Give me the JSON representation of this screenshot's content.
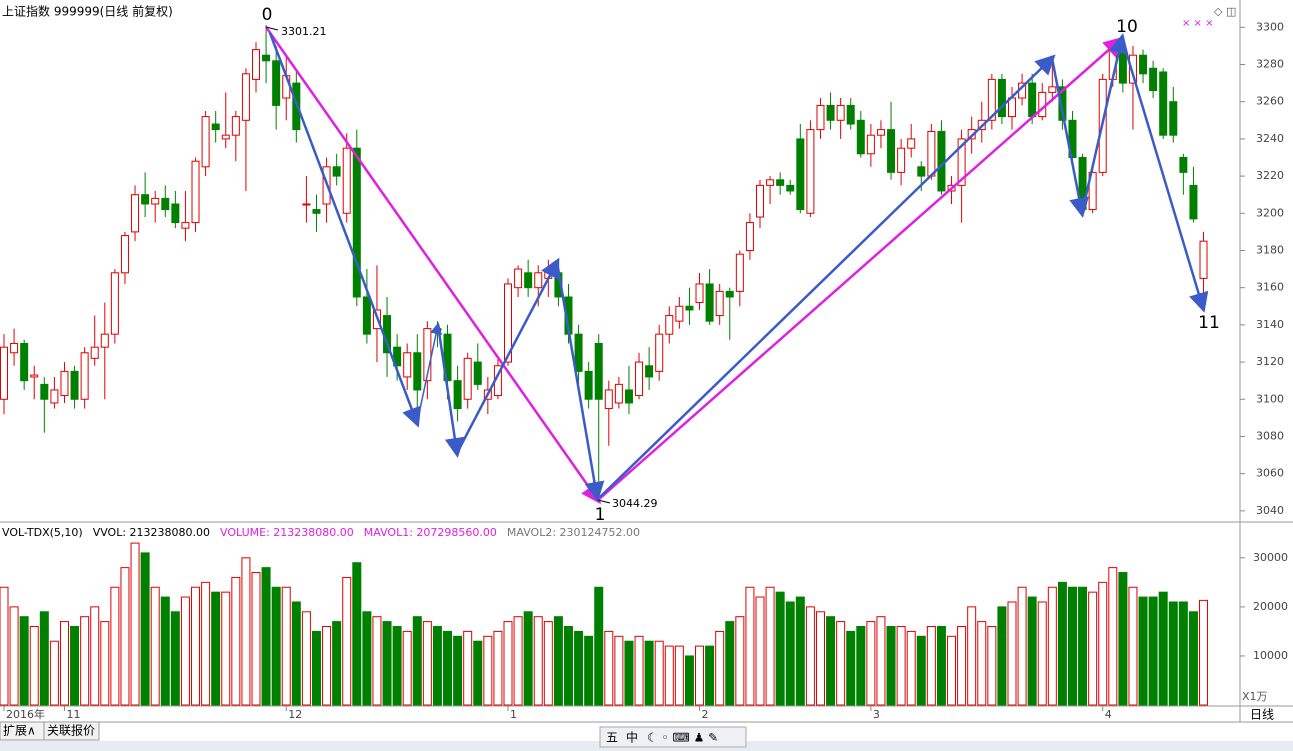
{
  "chart_data": {
    "type": "candlestick",
    "title": "上证指数 999999(日线 前复权)",
    "categories": [
      "2016年",
      null,
      null,
      null,
      null,
      null,
      "11",
      null,
      null,
      null,
      null,
      null,
      null,
      null,
      null,
      null,
      null,
      null,
      null,
      null,
      null,
      null,
      null,
      null,
      null,
      null,
      null,
      null,
      "12",
      null,
      null,
      null,
      null,
      null,
      null,
      null,
      null,
      null,
      null,
      null,
      null,
      null,
      null,
      null,
      null,
      null,
      null,
      null,
      null,
      null,
      "1",
      null,
      null,
      null,
      null,
      null,
      null,
      null,
      null,
      null,
      null,
      null,
      null,
      null,
      null,
      null,
      null,
      null,
      null,
      "2",
      null,
      null,
      null,
      null,
      null,
      null,
      null,
      null,
      null,
      null,
      null,
      null,
      null,
      null,
      null,
      null,
      "3",
      null,
      null,
      null,
      null,
      null,
      null,
      null,
      null,
      null,
      null,
      null,
      null,
      null,
      null,
      null,
      null,
      null,
      null,
      null,
      null,
      null,
      null,
      "4",
      null,
      null,
      null,
      null,
      null,
      null,
      null,
      null,
      null,
      null
    ],
    "ohlc": [
      [
        3100,
        3135,
        3092,
        3128
      ],
      [
        3125,
        3138,
        3118,
        3130
      ],
      [
        3130,
        3132,
        3105,
        3110
      ],
      [
        3112,
        3118,
        3100,
        3113
      ],
      [
        3108,
        3112,
        3082,
        3100
      ],
      [
        3098,
        3112,
        3095,
        3105
      ],
      [
        3102,
        3120,
        3098,
        3115
      ],
      [
        3115,
        3118,
        3095,
        3100
      ],
      [
        3100,
        3128,
        3095,
        3125
      ],
      [
        3122,
        3145,
        3118,
        3128
      ],
      [
        3128,
        3152,
        3100,
        3135
      ],
      [
        3135,
        3170,
        3130,
        3168
      ],
      [
        3168,
        3190,
        3162,
        3188
      ],
      [
        3190,
        3215,
        3185,
        3210
      ],
      [
        3210,
        3222,
        3198,
        3205
      ],
      [
        3205,
        3212,
        3195,
        3208
      ],
      [
        3208,
        3215,
        3198,
        3202
      ],
      [
        3205,
        3212,
        3192,
        3195
      ],
      [
        3192,
        3212,
        3185,
        3195
      ],
      [
        3195,
        3230,
        3190,
        3228
      ],
      [
        3225,
        3255,
        3220,
        3252
      ],
      [
        3248,
        3255,
        3238,
        3245
      ],
      [
        3240,
        3265,
        3235,
        3242
      ],
      [
        3242,
        3255,
        3228,
        3252
      ],
      [
        3250,
        3278,
        3212,
        3275
      ],
      [
        3272,
        3292,
        3265,
        3288
      ],
      [
        3285,
        3301.21,
        3270,
        3282
      ],
      [
        3282,
        3290,
        3245,
        3258
      ],
      [
        3262,
        3285,
        3250,
        3274
      ],
      [
        3270,
        3276,
        3238,
        3245
      ],
      [
        3205,
        3220,
        3195,
        3205
      ],
      [
        3202,
        3210,
        3190,
        3200
      ],
      [
        3205,
        3230,
        3195,
        3225
      ],
      [
        3225,
        3232,
        3215,
        3220
      ],
      [
        3200,
        3243,
        3195,
        3235
      ],
      [
        3235,
        3245,
        3150,
        3155
      ],
      [
        3155,
        3170,
        3130,
        3135
      ],
      [
        3138,
        3172,
        3120,
        3148
      ],
      [
        3145,
        3155,
        3112,
        3125
      ],
      [
        3128,
        3135,
        3110,
        3118
      ],
      [
        3112,
        3130,
        3105,
        3125
      ],
      [
        3125,
        3135,
        3095,
        3105
      ],
      [
        3110,
        3142,
        3100,
        3138
      ],
      [
        3138,
        3142,
        3128,
        3137
      ],
      [
        3135,
        3140,
        3100,
        3110
      ],
      [
        3110,
        3118,
        3088,
        3095
      ],
      [
        3100,
        3125,
        3095,
        3122
      ],
      [
        3120,
        3130,
        3105,
        3108
      ],
      [
        3100,
        3112,
        3092,
        3105
      ],
      [
        3102,
        3122,
        3100,
        3118
      ],
      [
        3120,
        3165,
        3118,
        3162
      ],
      [
        3160,
        3172,
        3155,
        3170
      ],
      [
        3168,
        3175,
        3155,
        3160
      ],
      [
        3160,
        3172,
        3150,
        3168
      ],
      [
        3165,
        3175,
        3155,
        3170
      ],
      [
        3168,
        3172,
        3150,
        3155
      ],
      [
        3155,
        3162,
        3130,
        3135
      ],
      [
        3135,
        3140,
        3108,
        3115
      ],
      [
        3115,
        3120,
        3095,
        3100
      ],
      [
        3130,
        3135,
        3044.29,
        3100
      ],
      [
        3095,
        3110,
        3075,
        3105
      ],
      [
        3098,
        3112,
        3095,
        3108
      ],
      [
        3105,
        3118,
        3092,
        3098
      ],
      [
        3102,
        3125,
        3100,
        3120
      ],
      [
        3118,
        3128,
        3105,
        3112
      ],
      [
        3115,
        3140,
        3110,
        3135
      ],
      [
        3135,
        3150,
        3130,
        3145
      ],
      [
        3142,
        3155,
        3138,
        3150
      ],
      [
        3150,
        3160,
        3140,
        3148
      ],
      [
        3152,
        3168,
        3148,
        3162
      ],
      [
        3162,
        3170,
        3140,
        3142
      ],
      [
        3145,
        3162,
        3140,
        3158
      ],
      [
        3158,
        3160,
        3132,
        3155
      ],
      [
        3158,
        3180,
        3150,
        3178
      ],
      [
        3180,
        3200,
        3175,
        3195
      ],
      [
        3198,
        3218,
        3192,
        3215
      ],
      [
        3215,
        3220,
        3205,
        3218
      ],
      [
        3218,
        3222,
        3210,
        3215
      ],
      [
        3215,
        3218,
        3210,
        3212
      ],
      [
        3240,
        3248,
        3200,
        3202
      ],
      [
        3200,
        3250,
        3198,
        3245
      ],
      [
        3245,
        3262,
        3240,
        3258
      ],
      [
        3258,
        3265,
        3245,
        3250
      ],
      [
        3250,
        3262,
        3240,
        3258
      ],
      [
        3258,
        3262,
        3245,
        3248
      ],
      [
        3250,
        3255,
        3230,
        3232
      ],
      [
        3232,
        3248,
        3225,
        3242
      ],
      [
        3242,
        3250,
        3235,
        3245
      ],
      [
        3245,
        3260,
        3218,
        3222
      ],
      [
        3222,
        3240,
        3215,
        3235
      ],
      [
        3235,
        3248,
        3230,
        3240
      ],
      [
        3225,
        3228,
        3212,
        3220
      ],
      [
        3220,
        3248,
        3218,
        3244
      ],
      [
        3244,
        3250,
        3210,
        3212
      ],
      [
        3212,
        3220,
        3205,
        3215
      ],
      [
        3215,
        3245,
        3195,
        3240
      ],
      [
        3240,
        3252,
        3232,
        3245
      ],
      [
        3245,
        3260,
        3238,
        3250
      ],
      [
        3250,
        3275,
        3245,
        3272
      ],
      [
        3272,
        3275,
        3248,
        3252
      ],
      [
        3252,
        3268,
        3245,
        3262
      ],
      [
        3262,
        3275,
        3258,
        3270
      ],
      [
        3270,
        3275,
        3248,
        3252
      ],
      [
        3252,
        3270,
        3250,
        3265
      ],
      [
        3265,
        3284,
        3260,
        3268
      ],
      [
        3268,
        3272,
        3245,
        3250
      ],
      [
        3250,
        3255,
        3225,
        3230
      ],
      [
        3230,
        3232,
        3198,
        3202
      ],
      [
        3202,
        3225,
        3200,
        3222
      ],
      [
        3222,
        3275,
        3220,
        3272
      ],
      [
        3272,
        3292,
        3268,
        3288
      ],
      [
        3288,
        3290,
        3265,
        3270
      ],
      [
        3270,
        3290,
        3245,
        3285
      ],
      [
        3285,
        3288,
        3270,
        3275
      ],
      [
        3278,
        3282,
        3262,
        3266
      ],
      [
        3276,
        3278,
        3240,
        3242
      ],
      [
        3260,
        3268,
        3238,
        3242
      ],
      [
        3230,
        3232,
        3210,
        3222
      ],
      [
        3215,
        3225,
        3195,
        3197
      ],
      [
        3165,
        3190,
        3150,
        3185
      ]
    ],
    "ylim": [
      3034,
      3312
    ],
    "yticks": [
      3040,
      3060,
      3080,
      3100,
      3120,
      3140,
      3160,
      3180,
      3200,
      3220,
      3240,
      3260,
      3280,
      3300
    ],
    "up_color": "#e00000",
    "down_color": "#008000",
    "volume": {
      "labels": [
        "VOL-TDX(5,10)",
        "VVOL: 213238080.00",
        "VOLUME: 213238080.00",
        "MAVOL1: 207298560.00",
        "MAVOL2: 230124752.00"
      ],
      "values": [
        24000,
        20000,
        18000,
        16000,
        19000,
        13000,
        17000,
        16000,
        18000,
        20000,
        17000,
        24000,
        28000,
        33000,
        31000,
        24000,
        22000,
        19000,
        22000,
        24000,
        25000,
        23000,
        23000,
        26000,
        30000,
        27000,
        28000,
        24000,
        24000,
        21000,
        19000,
        15000,
        16000,
        17000,
        26000,
        29000,
        19000,
        18000,
        17000,
        16000,
        15000,
        18000,
        17000,
        16000,
        15000,
        14000,
        15000,
        13000,
        14000,
        15000,
        17000,
        18000,
        19000,
        18000,
        17000,
        18000,
        16000,
        15000,
        14000,
        24000,
        15000,
        14000,
        13000,
        14000,
        13000,
        13000,
        12000,
        12000,
        10000,
        12000,
        12000,
        15000,
        17000,
        18000,
        24000,
        22000,
        24000,
        23000,
        21000,
        22000,
        20000,
        19000,
        18000,
        17000,
        15000,
        16000,
        17000,
        18000,
        16000,
        16000,
        15000,
        14000,
        16000,
        16000,
        14000,
        16000,
        20000,
        17000,
        16000,
        20000,
        21000,
        24000,
        22000,
        21000,
        24000,
        25000,
        24000,
        24000,
        23000,
        25000,
        28000,
        27000,
        24000,
        22000,
        22000,
        23000,
        21000,
        21000,
        19000,
        21323.808
      ],
      "ylim": [
        0,
        37300
      ],
      "yticks": [
        10000,
        20000,
        30000
      ],
      "unit": "X1万"
    },
    "annotations": [
      "0",
      "3301.21",
      "1",
      "3044.29",
      "10",
      "11"
    ],
    "period": "日线",
    "tabs": [
      "扩展∧",
      "关联报价"
    ],
    "toolbar": [
      "五",
      "中"
    ]
  }
}
